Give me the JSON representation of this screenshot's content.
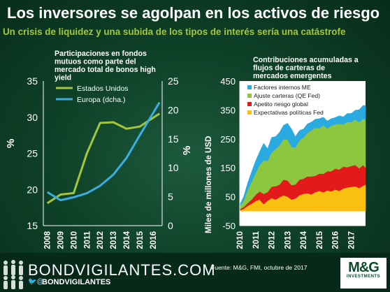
{
  "header": {
    "title": "Los inversores se agolpan en los activos de riesgo",
    "subtitle": "Un crisis de liquidez y una subida de los tipos de interés sería una catástrofe"
  },
  "footer": {
    "brand": "BONDVIGILANTES.COM",
    "handle": "BONDVIGILANTES",
    "handle_icons": "🐦@",
    "source": "Fuente: M&G, FMI, octubre de 2017",
    "mg_logo": "M&G",
    "mg_sub": "INVESTMENTS"
  },
  "colors": {
    "us_line": "#a5c63b",
    "europe_line": "#3aaee3",
    "factores": "#29abe2",
    "ajuste": "#8dc63f",
    "apetito": "#e3191b",
    "expectativas": "#f9c00f"
  },
  "chart_data": [
    {
      "type": "line",
      "title": "Participaciones en fondos mutuos como parte del mercado total de bonos high yield",
      "x": [
        "2008",
        "2009",
        "2010",
        "2011",
        "2012",
        "2013",
        "2014",
        "2015",
        "2016"
      ],
      "ylabel_left": "%",
      "ylabel_right": "%",
      "ylim_left": [
        15,
        35
      ],
      "ylim_right": [
        0,
        25
      ],
      "yticks_left": [
        "15",
        "20",
        "25",
        "30",
        "35"
      ],
      "yticks_right": [
        "0",
        "5",
        "10",
        "15",
        "20",
        "25"
      ],
      "series": [
        {
          "name": "Estados Unidos",
          "axis": "left",
          "x": [
            2008,
            2009,
            2010,
            2011,
            2012,
            2013,
            2014,
            2015,
            2016.5
          ],
          "values": [
            18.1,
            19.3,
            19.5,
            25.0,
            29.2,
            29.3,
            28.4,
            28.7,
            30.5
          ]
        },
        {
          "name": "Europa (dcha.)",
          "axis": "right",
          "x": [
            2008,
            2009,
            2010,
            2011,
            2012,
            2013,
            2014,
            2015,
            2016.5
          ],
          "values": [
            5.8,
            4.4,
            4.9,
            5.6,
            6.9,
            8.8,
            11.7,
            15.6,
            21.3
          ]
        }
      ]
    },
    {
      "type": "area",
      "title": "Contribuciones acumuladas a flujos de carteras de mercados emergentes",
      "ylabel": "Miles de millones de USD",
      "ylim": [
        -50,
        450
      ],
      "yticks": [
        "-50",
        "50",
        "150",
        "250",
        "350",
        "450"
      ],
      "xlim": [
        2010,
        2017.9
      ],
      "xticks": [
        "2010",
        "2011",
        "2012",
        "2013",
        "2014",
        "2015",
        "2016",
        "2017"
      ],
      "x": [
        2010.0,
        2010.25,
        2010.5,
        2010.75,
        2011.0,
        2011.25,
        2011.5,
        2011.75,
        2012.0,
        2012.25,
        2012.5,
        2012.75,
        2013.0,
        2013.25,
        2013.5,
        2013.75,
        2014.0,
        2014.25,
        2014.5,
        2014.75,
        2015.0,
        2015.25,
        2015.5,
        2015.75,
        2016.0,
        2016.25,
        2016.5,
        2016.75,
        2017.0,
        2017.25,
        2017.5,
        2017.75,
        2017.9
      ],
      "series": [
        {
          "name": "Expectativas políticas Fed",
          "values": [
            3,
            8,
            18,
            26,
            35,
            40,
            24,
            36,
            45,
            40,
            48,
            55,
            50,
            40,
            44,
            55,
            60,
            62,
            58,
            66,
            70,
            65,
            72,
            68,
            75,
            70,
            78,
            82,
            84,
            86,
            80,
            88,
            92
          ]
        },
        {
          "name": "Apetito riesgo global",
          "values": [
            4,
            6,
            10,
            14,
            22,
            28,
            36,
            30,
            40,
            46,
            44,
            54,
            56,
            50,
            48,
            54,
            52,
            58,
            62,
            56,
            60,
            64,
            66,
            70,
            72,
            74,
            76,
            70,
            72,
            74,
            68,
            72,
            58
          ]
        },
        {
          "name": "Ajuste carteras (QE Fed)",
          "values": [
            10,
            22,
            45,
            62,
            75,
            92,
            115,
            108,
            118,
            128,
            135,
            140,
            142,
            132,
            128,
            135,
            142,
            150,
            160,
            166,
            156,
            168,
            148,
            158,
            153,
            158,
            146,
            156,
            152,
            157,
            159,
            160,
            165
          ]
        },
        {
          "name": "Factores internos ME",
          "values": [
            5,
            15,
            25,
            35,
            42,
            46,
            60,
            42,
            52,
            44,
            46,
            48,
            56,
            62,
            38,
            35,
            30,
            32,
            28,
            30,
            34,
            28,
            26,
            24,
            24,
            28,
            26,
            30,
            30,
            32,
            44,
            46,
            50
          ]
        }
      ]
    }
  ]
}
